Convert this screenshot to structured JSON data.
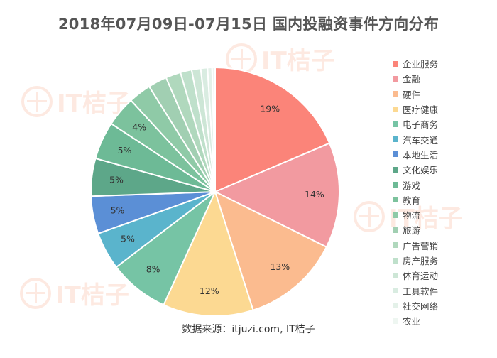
{
  "title": "2018年07月09日-07月15日  国内投融资事件方向分布",
  "source": "数据来源：itjuzi.com, IT桔子",
  "watermark_text": "IT桔子",
  "colors": {
    "label": "#333333",
    "watermark": "#f7a07a"
  },
  "chart_data": {
    "type": "pie",
    "title": "2018年07月09日-07月15日  国内投融资事件方向分布",
    "legend_position": "right",
    "start_angle_deg": 0,
    "direction": "clockwise",
    "slices": [
      {
        "name": "企业服务",
        "value": 19,
        "label": "19%",
        "color": "#fb8479"
      },
      {
        "name": "金融",
        "value": 14,
        "label": "14%",
        "color": "#f29aa0"
      },
      {
        "name": "硬件",
        "value": 13,
        "label": "13%",
        "color": "#fbbb8f"
      },
      {
        "name": "医疗健康",
        "value": 12,
        "label": "12%",
        "color": "#fcd992"
      },
      {
        "name": "电子商务",
        "value": 8,
        "label": "8%",
        "color": "#76c4a5"
      },
      {
        "name": "汽车交通",
        "value": 5,
        "label": "5%",
        "color": "#5ab4cc"
      },
      {
        "name": "本地生活",
        "value": 5,
        "label": "5%",
        "color": "#5b8fd6"
      },
      {
        "name": "文化娱乐",
        "value": 5,
        "label": "5%",
        "color": "#5da789"
      },
      {
        "name": "游戏",
        "value": 5,
        "label": "5%",
        "color": "#6dba96"
      },
      {
        "name": "教育",
        "value": 4,
        "label": "4%",
        "color": "#7cc29d"
      },
      {
        "name": "物流",
        "value": 3,
        "label": "",
        "color": "#8fcaa7"
      },
      {
        "name": "旅游",
        "value": 2.5,
        "label": "",
        "color": "#a1cfb2"
      },
      {
        "name": "广告营销",
        "value": 2,
        "label": "",
        "color": "#b0d8bd"
      },
      {
        "name": "房产服务",
        "value": 1.5,
        "label": "",
        "color": "#bfe0cb"
      },
      {
        "name": "体育运动",
        "value": 1.2,
        "label": "",
        "color": "#cde6d6"
      },
      {
        "name": "工具软件",
        "value": 0.9,
        "label": "",
        "color": "#d9ece1"
      },
      {
        "name": "社交网络",
        "value": 0.6,
        "label": "",
        "color": "#e4f1e9"
      },
      {
        "name": "农业",
        "value": 0.4,
        "label": "",
        "color": "#eef6f1"
      }
    ]
  }
}
